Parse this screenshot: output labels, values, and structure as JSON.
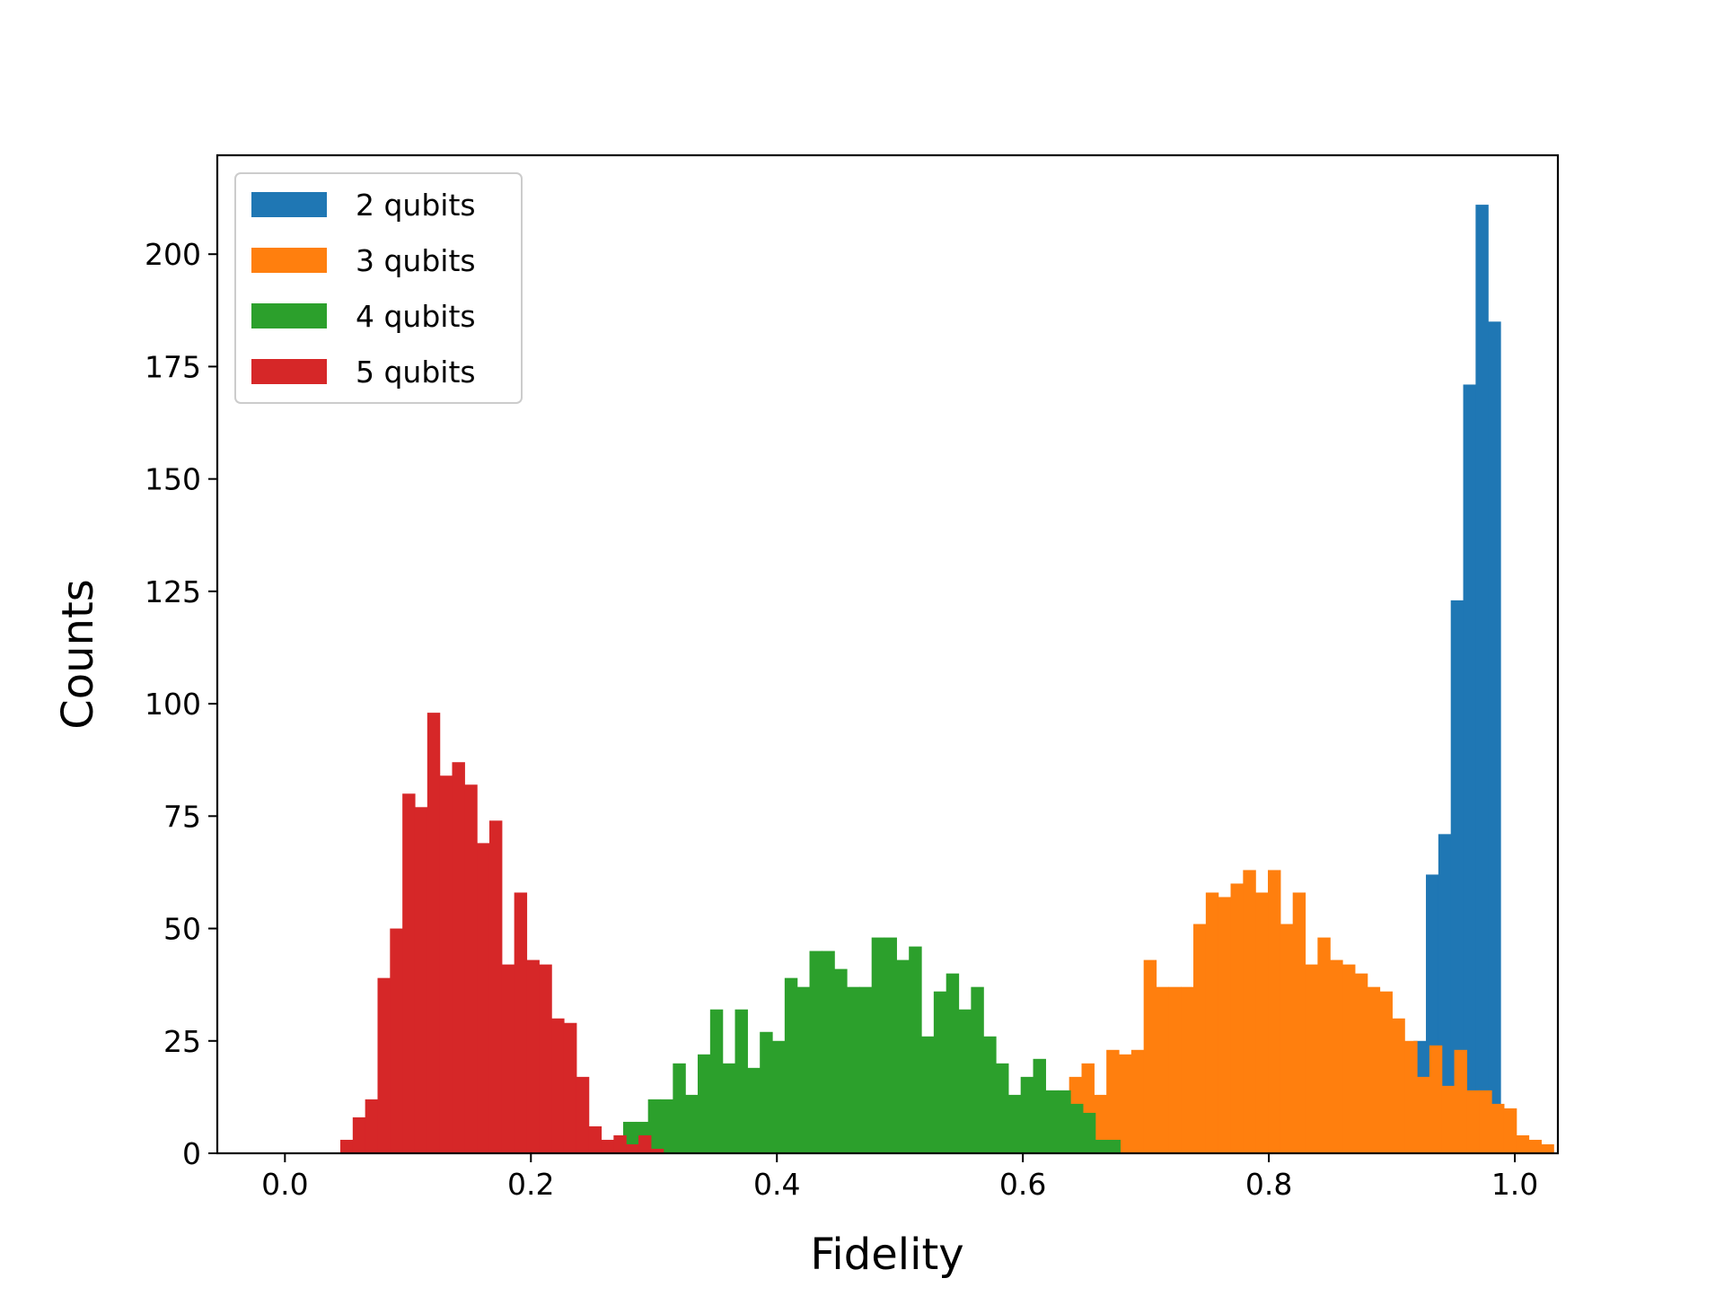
{
  "chart_data": {
    "type": "histogram",
    "title": "",
    "xlabel": "Fidelity",
    "ylabel": "Counts",
    "xlim": [
      -0.055,
      1.035
    ],
    "ylim": [
      0,
      222
    ],
    "xticks": [
      0.0,
      0.2,
      0.4,
      0.6,
      0.8,
      1.0
    ],
    "xtick_labels": [
      "0.0",
      "0.2",
      "0.4",
      "0.6",
      "0.8",
      "1.0"
    ],
    "yticks": [
      0,
      25,
      50,
      75,
      100,
      125,
      150,
      175,
      200
    ],
    "ytick_labels": [
      "0",
      "25",
      "50",
      "75",
      "100",
      "125",
      "150",
      "175",
      "200"
    ],
    "grid": false,
    "legend_position": "top-left",
    "series": [
      {
        "name": "2 qubits",
        "color": "#1f77b4",
        "bin_start": 0.9075,
        "bin_width": 0.0101,
        "counts": [
          22,
          25,
          62,
          71,
          123,
          171,
          211,
          185
        ]
      },
      {
        "name": "3 qubits",
        "color": "#ff7f0e",
        "bin_start": 0.6275,
        "bin_width": 0.0101,
        "counts": [
          12,
          17,
          20,
          13,
          23,
          22,
          23,
          43,
          37,
          37,
          37,
          51,
          58,
          57,
          60,
          63,
          58,
          63,
          51,
          58,
          42,
          48,
          43,
          42,
          40,
          37,
          36,
          30,
          25,
          17,
          24,
          15,
          23,
          14,
          14,
          11,
          10,
          4,
          3,
          2
        ]
      },
      {
        "name": "4 qubits",
        "color": "#2ca02c",
        "bin_start": 0.275,
        "bin_width": 0.0101,
        "counts": [
          7,
          7,
          12,
          12,
          20,
          13,
          22,
          32,
          20,
          32,
          19,
          27,
          25,
          39,
          37,
          45,
          45,
          41,
          37,
          37,
          48,
          48,
          43,
          46,
          26,
          36,
          40,
          32,
          37,
          26,
          20,
          13,
          17,
          21,
          14,
          14,
          11,
          9,
          3,
          3
        ]
      },
      {
        "name": "5 qubits",
        "color": "#d62728",
        "bin_start": 0.045,
        "bin_width": 0.0101,
        "counts": [
          3,
          8,
          12,
          39,
          50,
          80,
          77,
          98,
          84,
          87,
          82,
          69,
          74,
          42,
          58,
          43,
          42,
          30,
          29,
          17,
          6,
          3,
          4,
          2,
          4,
          1
        ]
      }
    ]
  }
}
